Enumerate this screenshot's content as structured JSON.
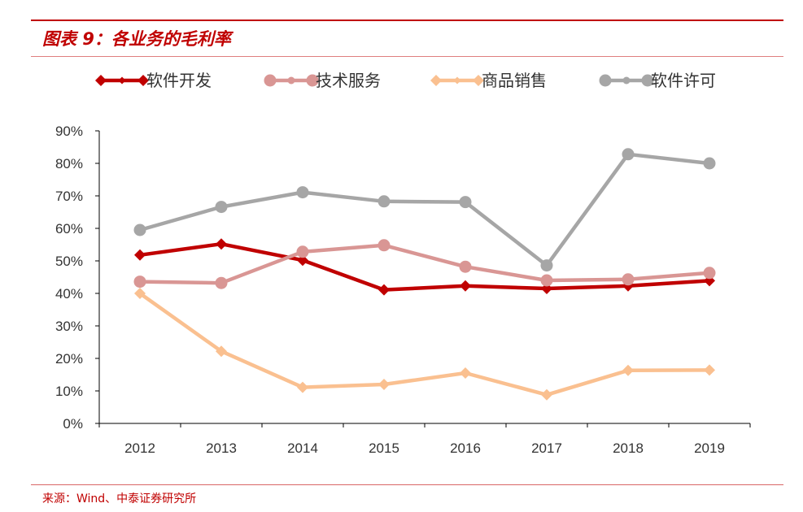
{
  "header": {
    "figure_title": "图表 9：各业务的毛利率"
  },
  "footer": {
    "source": "来源：Wind、中泰证券研究所"
  },
  "chart_data": {
    "type": "line",
    "x": [
      "2012",
      "2013",
      "2014",
      "2015",
      "2016",
      "2017",
      "2018",
      "2019"
    ],
    "ylim": [
      0,
      90
    ],
    "yticks": [
      0,
      10,
      20,
      30,
      40,
      50,
      60,
      70,
      80,
      90
    ],
    "ytick_labels": [
      "0%",
      "10%",
      "20%",
      "30%",
      "40%",
      "50%",
      "60%",
      "70%",
      "80%",
      "90%"
    ],
    "grid": false,
    "legend_position": "top",
    "series": [
      {
        "name": "软件开发",
        "color": "#c00000",
        "marker": "diamond",
        "values": [
          51.8,
          55.2,
          50.2,
          41.1,
          42.3,
          41.5,
          42.3,
          43.9
        ]
      },
      {
        "name": "技术服务",
        "color": "#d99694",
        "marker": "circle",
        "values": [
          43.6,
          43.2,
          52.8,
          54.8,
          48.2,
          44.0,
          44.3,
          46.3
        ]
      },
      {
        "name": "商品销售",
        "color": "#fac090",
        "marker": "diamond",
        "values": [
          40.0,
          22.2,
          11.1,
          12.0,
          15.5,
          8.8,
          16.3,
          16.4
        ]
      },
      {
        "name": "软件许可",
        "color": "#a6a6a6",
        "marker": "circle",
        "values": [
          59.5,
          66.6,
          71.1,
          68.3,
          68.1,
          48.6,
          82.8,
          80.0
        ]
      }
    ]
  }
}
